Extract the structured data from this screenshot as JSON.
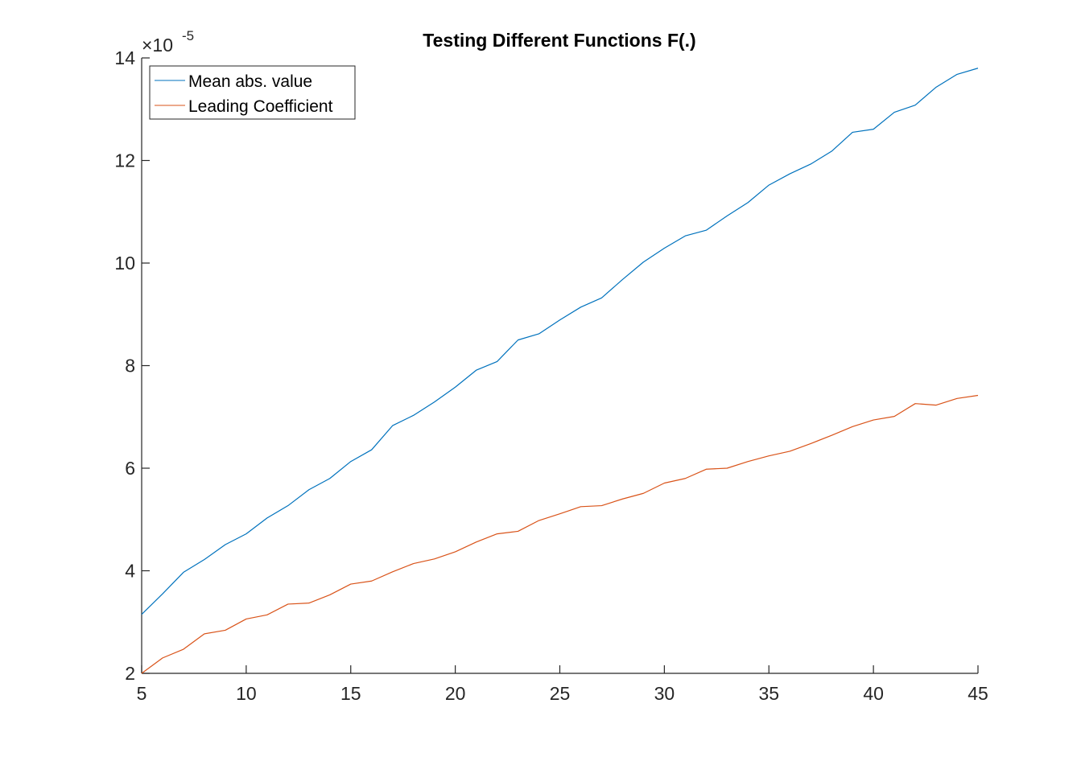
{
  "chart_data": {
    "type": "line",
    "title": "Testing Different Functions F(.)",
    "xlabel": "",
    "ylabel": "",
    "xlim": [
      5,
      45
    ],
    "ylim": [
      2,
      14
    ],
    "xticks": [
      5,
      10,
      15,
      20,
      25,
      30,
      35,
      40,
      45
    ],
    "yticks": [
      2,
      4,
      6,
      8,
      10,
      12,
      14
    ],
    "y_exponent_label": "×10",
    "y_exponent_value": "-5",
    "grid": false,
    "legend_position": "top-left",
    "x": [
      5,
      6,
      7,
      8,
      9,
      10,
      11,
      12,
      13,
      14,
      15,
      16,
      17,
      18,
      19,
      20,
      21,
      22,
      23,
      24,
      25,
      26,
      27,
      28,
      29,
      30,
      31,
      32,
      33,
      34,
      35,
      36,
      37,
      38,
      39,
      40,
      41,
      42,
      43,
      44,
      45
    ],
    "series": [
      {
        "name": "Mean abs. value",
        "color": "#0072BD",
        "values": [
          3.15,
          3.55,
          3.97,
          4.22,
          4.51,
          4.72,
          5.03,
          5.27,
          5.58,
          5.8,
          6.13,
          6.36,
          6.83,
          7.03,
          7.29,
          7.58,
          7.91,
          8.08,
          8.5,
          8.62,
          8.89,
          9.14,
          9.32,
          9.68,
          10.02,
          10.29,
          10.53,
          10.64,
          10.92,
          11.18,
          11.52,
          11.74,
          11.93,
          12.18,
          12.55,
          12.61,
          12.94,
          13.08,
          13.43,
          13.68,
          13.8
        ]
      },
      {
        "name": "Leading Coefficient",
        "color": "#D95319",
        "values": [
          2.0,
          2.3,
          2.47,
          2.77,
          2.84,
          3.06,
          3.14,
          3.35,
          3.37,
          3.53,
          3.74,
          3.8,
          3.98,
          4.14,
          4.23,
          4.37,
          4.56,
          4.72,
          4.77,
          4.98,
          5.11,
          5.25,
          5.27,
          5.4,
          5.51,
          5.71,
          5.8,
          5.98,
          6.0,
          6.13,
          6.24,
          6.33,
          6.48,
          6.64,
          6.81,
          6.94,
          7.01,
          7.26,
          7.23,
          7.36,
          7.42
        ]
      }
    ]
  }
}
